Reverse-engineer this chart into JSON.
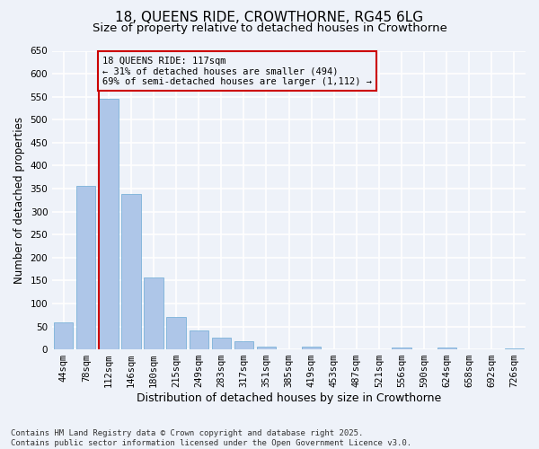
{
  "title_line1": "18, QUEENS RIDE, CROWTHORNE, RG45 6LG",
  "title_line2": "Size of property relative to detached houses in Crowthorne",
  "xlabel": "Distribution of detached houses by size in Crowthorne",
  "ylabel": "Number of detached properties",
  "categories": [
    "44sqm",
    "78sqm",
    "112sqm",
    "146sqm",
    "180sqm",
    "215sqm",
    "249sqm",
    "283sqm",
    "317sqm",
    "351sqm",
    "385sqm",
    "419sqm",
    "453sqm",
    "487sqm",
    "521sqm",
    "556sqm",
    "590sqm",
    "624sqm",
    "658sqm",
    "692sqm",
    "726sqm"
  ],
  "values": [
    58,
    355,
    545,
    338,
    157,
    70,
    42,
    25,
    18,
    7,
    0,
    7,
    0,
    0,
    0,
    5,
    0,
    5,
    0,
    0,
    3
  ],
  "bar_color": "#aec6e8",
  "bar_edge_color": "#6aaad4",
  "highlight_line_color": "#cc0000",
  "highlight_line_index": 2,
  "annotation_text": "18 QUEENS RIDE: 117sqm\n← 31% of detached houses are smaller (494)\n69% of semi-detached houses are larger (1,112) →",
  "annotation_box_edge_color": "#cc0000",
  "ylim": [
    0,
    650
  ],
  "yticks": [
    0,
    50,
    100,
    150,
    200,
    250,
    300,
    350,
    400,
    450,
    500,
    550,
    600,
    650
  ],
  "footnote": "Contains HM Land Registry data © Crown copyright and database right 2025.\nContains public sector information licensed under the Open Government Licence v3.0.",
  "background_color": "#eef2f9",
  "grid_color": "#ffffff",
  "title_fontsize": 11,
  "subtitle_fontsize": 9.5,
  "axis_label_fontsize": 8.5,
  "tick_fontsize": 7.5,
  "annotation_fontsize": 7.5,
  "footnote_fontsize": 6.5
}
